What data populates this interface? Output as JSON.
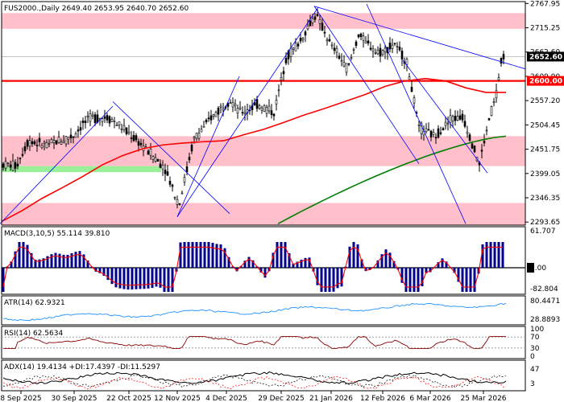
{
  "chart_data": {
    "type": "candlestick",
    "symbol": "FUS2000.",
    "timeframe": "Daily",
    "header": "FUS2000.,Daily  2649.40 2653.95 2640.70 2652.60",
    "ohlc": {
      "open": 2649.4,
      "high": 2653.95,
      "low": 2640.7,
      "close": 2652.6
    },
    "last_price_label": "2652.60",
    "level_label": "2600.00",
    "level_value": 2600.0,
    "x_labels": [
      "8 Sep 2025",
      "30 Sep 2025",
      "22 Oct 2025",
      "12 Nov 2025",
      "4 Dec 2025",
      "29 Dec 2025",
      "21 Jan 2026",
      "12 Feb 2026",
      "6 Mar 2026",
      "25 Mar 2026"
    ],
    "price_axis": {
      "ticks": [
        "2767.95",
        "2715.25",
        "2662.60",
        "2609.90",
        "2557.20",
        "2504.45",
        "2451.75",
        "2399.05",
        "2346.35",
        "2293.65"
      ],
      "ylim": [
        2287,
        2772
      ]
    },
    "zones": [
      {
        "from": 2713,
        "to": 2747,
        "color": "#ffc0cb"
      },
      {
        "from": 2415,
        "to": 2480,
        "color": "#ffc0cb"
      },
      {
        "from": 2402,
        "to": 2415,
        "color": "#99f099"
      },
      {
        "from": 2287,
        "to": 2335,
        "color": "#ffc0cb"
      }
    ],
    "ma_red": [
      2295,
      2318,
      2345,
      2368,
      2392,
      2418,
      2438,
      2453,
      2461,
      2465,
      2468,
      2470,
      2483,
      2495,
      2510,
      2526,
      2540,
      2555,
      2570,
      2588,
      2600,
      2605,
      2600,
      2585,
      2575,
      2575
    ],
    "ma_green_start": 2290,
    "ma_green_end": 2480,
    "trendlines": [
      {
        "x1": 0,
        "y1": 2290,
        "x2": 140,
        "y2": 2545
      },
      {
        "x1": 140,
        "y1": 2555,
        "x2": 285,
        "y2": 2312
      },
      {
        "x1": 220,
        "y1": 2305,
        "x2": 297,
        "y2": 2610
      },
      {
        "x1": 220,
        "y1": 2305,
        "x2": 395,
        "y2": 2760
      },
      {
        "x1": 390,
        "y1": 2762,
        "x2": 652,
        "y2": 2626
      },
      {
        "x1": 390,
        "y1": 2762,
        "x2": 520,
        "y2": 2420
      },
      {
        "x1": 455,
        "y1": 2767,
        "x2": 578,
        "y2": 2290
      },
      {
        "x1": 500,
        "y1": 2645,
        "x2": 605,
        "y2": 2400
      }
    ],
    "panels": [
      {
        "name": "macd",
        "title": "MACD(3,10,5) 55.114 39.810",
        "ticks": [
          "61.707",
          "0.00",
          "-82.804"
        ]
      },
      {
        "name": "atr",
        "title": "ATR(14) 62.9321",
        "ticks": [
          "80.4471",
          "28.8893"
        ]
      },
      {
        "name": "rsi",
        "title": "RSI(14) 62.5634",
        "ticks": [
          "100",
          "70",
          "30",
          "0"
        ]
      },
      {
        "name": "adx",
        "title": "ADX(14) 19.4134 +DI:17.4397 -DI:11.5297",
        "ticks": [
          "47",
          "3"
        ]
      }
    ],
    "colors": {
      "bull": "#000000",
      "bear": "#000000",
      "ma_red": "#ff0000",
      "ma_green": "#008000",
      "trend": "#0000ff",
      "level": "#ff0000",
      "macd_hist": "#00008b",
      "atr": "#1e90ff",
      "rsi": "#8b0000",
      "adx": "#000000",
      "di_minus": "#ff0000"
    }
  }
}
